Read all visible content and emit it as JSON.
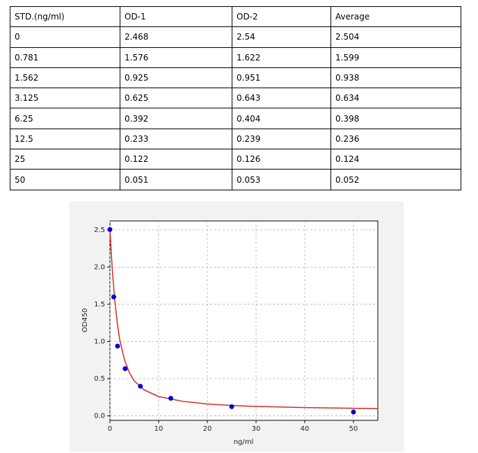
{
  "table": {
    "header": [
      "STD.(ng/ml)",
      "OD-1",
      "OD-2",
      "Average"
    ],
    "rows": [
      [
        "0",
        "2.468",
        "2.54",
        "2.504"
      ],
      [
        "0.781",
        "1.576",
        "1.622",
        "1.599"
      ],
      [
        "1.562",
        "0.925",
        "0.951",
        "0.938"
      ],
      [
        "3.125",
        "0.625",
        "0.643",
        "0.634"
      ],
      [
        "6.25",
        "0.392",
        "0.404",
        "0.398"
      ],
      [
        "12.5",
        "0.233",
        "0.239",
        "0.236"
      ],
      [
        "25",
        "0.122",
        "0.126",
        "0.124"
      ],
      [
        "50",
        "0.051",
        "0.053",
        "0.052"
      ]
    ]
  },
  "chart_data": {
    "type": "scatter",
    "xlabel": "ng/ml",
    "ylabel": "OD450",
    "xlim": [
      0,
      55
    ],
    "ylim": [
      -0.06,
      2.62
    ],
    "xticks": [
      0,
      10,
      20,
      30,
      40,
      50
    ],
    "yticks": [
      {
        "value": 0,
        "label": "0.0"
      },
      0.5,
      {
        "value": 1,
        "label": "1.0"
      },
      1.5,
      {
        "value": 2,
        "label": "2.0"
      },
      2.5
    ],
    "grid": true,
    "series": [
      {
        "mode": "markers",
        "color": "#0000dd",
        "x": [
          0,
          0.781,
          1.562,
          3.125,
          6.25,
          12.5,
          25,
          50
        ],
        "values": [
          2.504,
          1.599,
          0.938,
          0.634,
          0.398,
          0.236,
          0.124,
          0.052
        ]
      },
      {
        "mode": "line",
        "color": "#d62728",
        "x": [
          0,
          0.5,
          1,
          1.5,
          2,
          3,
          4,
          5,
          7,
          10,
          15,
          20,
          25,
          30,
          40,
          50,
          55
        ],
        "values": [
          2.5,
          1.95,
          1.55,
          1.25,
          1.03,
          0.75,
          0.58,
          0.47,
          0.35,
          0.26,
          0.195,
          0.16,
          0.14,
          0.127,
          0.112,
          0.102,
          0.098
        ]
      }
    ]
  }
}
